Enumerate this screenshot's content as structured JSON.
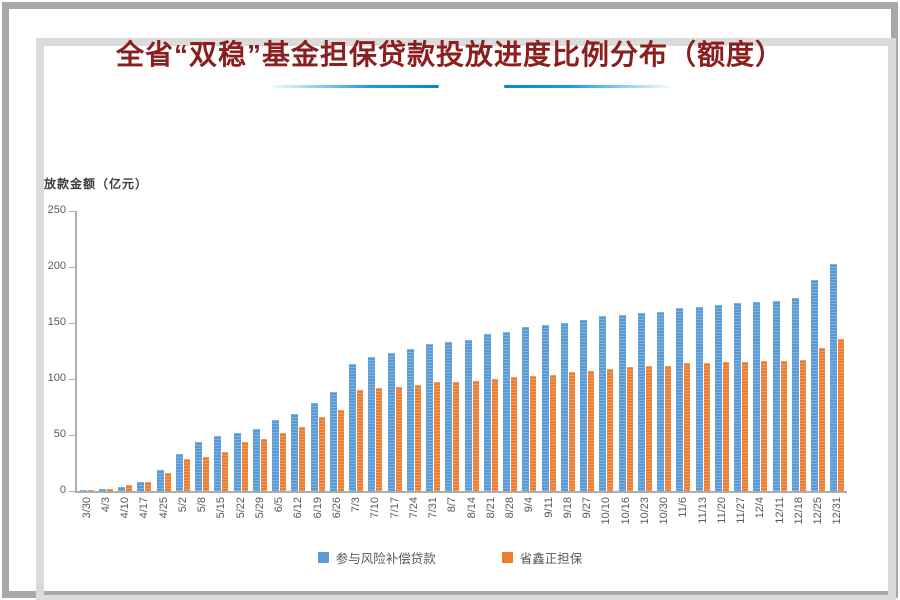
{
  "chart_data": {
    "type": "bar",
    "title": "全省“双稳”基金担保贷款投放进度比例分布（额度）",
    "ylabel": "放款金额（亿元）",
    "xlabel": "",
    "ylim": [
      0,
      250
    ],
    "yticks": [
      250,
      200,
      150,
      100,
      50,
      0
    ],
    "grid": false,
    "legend_position": "bottom",
    "categories": [
      "3/30",
      "4/3",
      "4/10",
      "4/17",
      "4/25",
      "5/2",
      "5/8",
      "5/15",
      "5/22",
      "5/29",
      "6/5",
      "6/12",
      "6/19",
      "6/26",
      "7/3",
      "7/10",
      "7/17",
      "7/24",
      "7/31",
      "8/7",
      "8/14",
      "8/21",
      "8/28",
      "9/4",
      "9/11",
      "9/18",
      "9/27",
      "10/10",
      "10/16",
      "10/23",
      "10/30",
      "11/6",
      "11/13",
      "11/20",
      "11/27",
      "12/4",
      "12/11",
      "12/18",
      "12/25",
      "12/31"
    ],
    "series": [
      {
        "name": "参与风险补偿贷款",
        "color": "#5B9BD5",
        "values": [
          1,
          2,
          4,
          8,
          19,
          33,
          44,
          49,
          52,
          55,
          63,
          69,
          79,
          88,
          113,
          120,
          123,
          127,
          131,
          133,
          135,
          140,
          142,
          146,
          148,
          150,
          153,
          156,
          157,
          159,
          160,
          163,
          164,
          166,
          168,
          169,
          170,
          172,
          188,
          203
        ]
      },
      {
        "name": "省鑫正担保",
        "color": "#ED7D31",
        "values": [
          1,
          2,
          5,
          8,
          16,
          29,
          30,
          35,
          44,
          46,
          52,
          57,
          66,
          72,
          90,
          92,
          93,
          95,
          97,
          97,
          98,
          100,
          102,
          103,
          104,
          106,
          107,
          109,
          111,
          112,
          112,
          114,
          114,
          115,
          115,
          116,
          116,
          117,
          128,
          136
        ]
      }
    ]
  },
  "colors": {
    "title_text": "#8B1E1E",
    "accent_stroke": "#1B9AE6",
    "axis_text": "#595959",
    "axis_line": "#B0B0B0",
    "frame_outer": "#A8A8A8",
    "frame_inner": "#DBDBDB"
  }
}
